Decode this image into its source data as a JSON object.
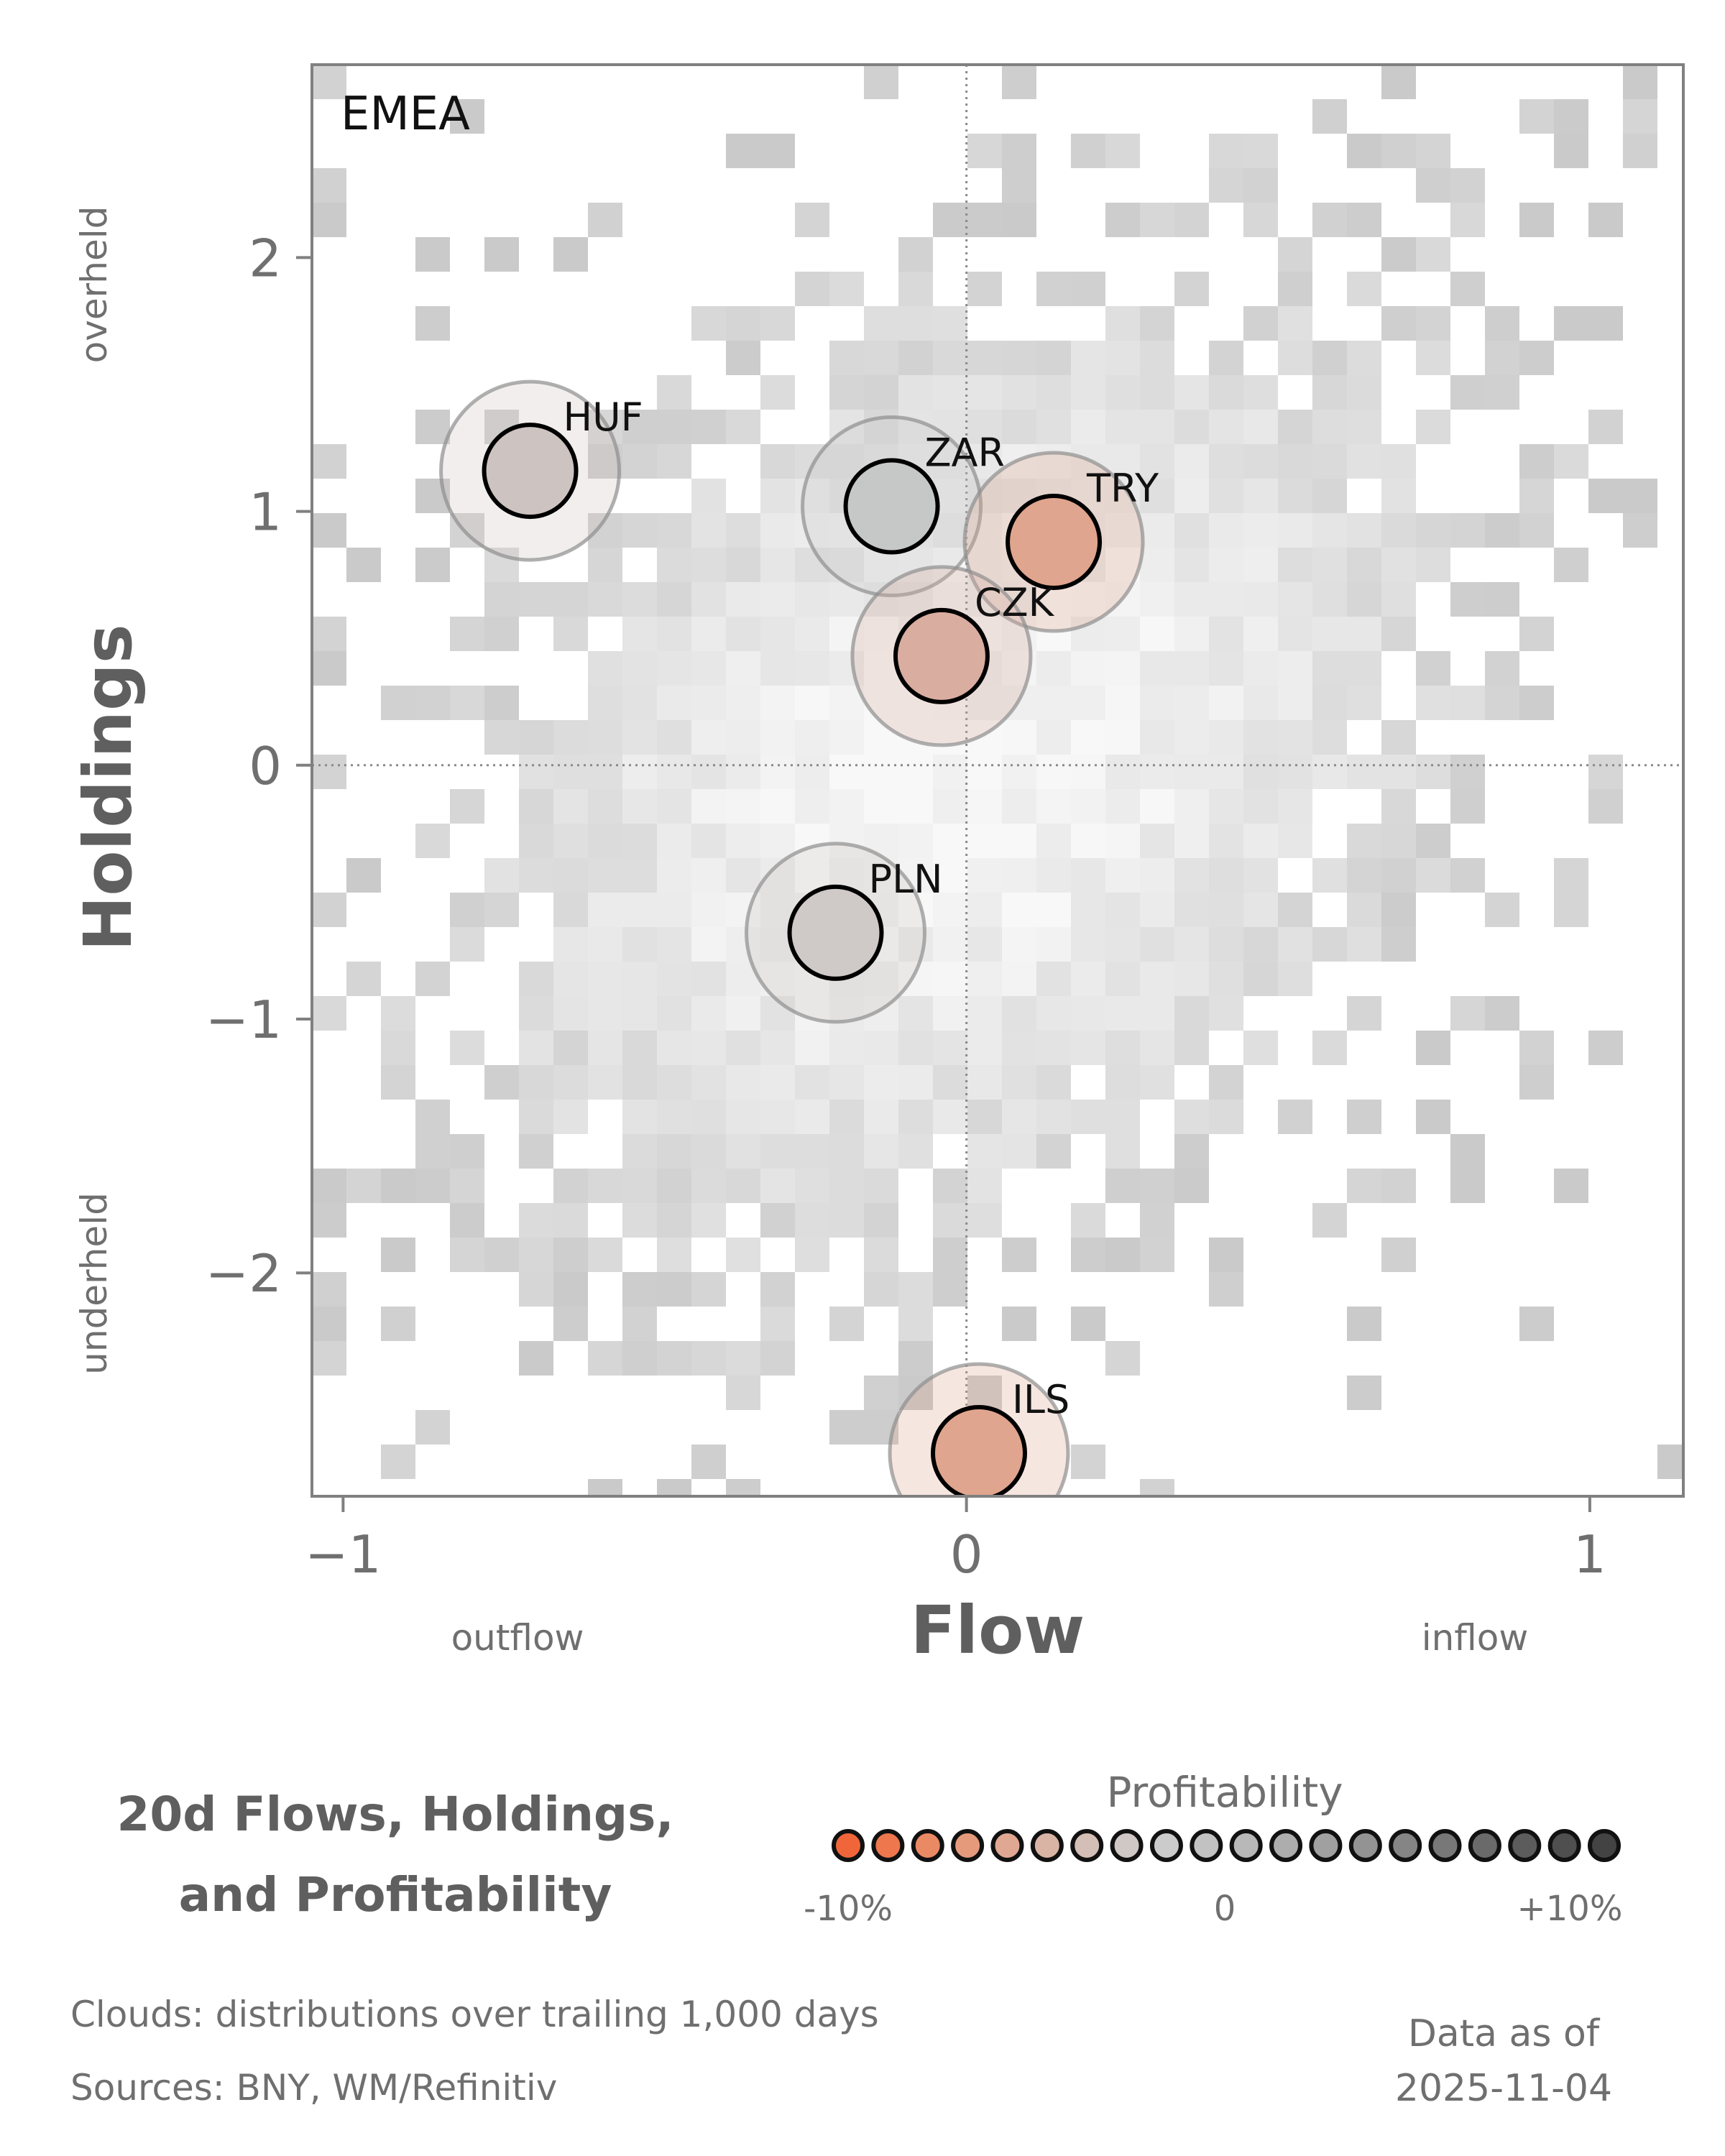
{
  "chart_data": {
    "type": "scatter",
    "panel_label": "EMEA",
    "xlabel": "Flow",
    "ylabel": "Holdings",
    "x_side_labels": {
      "left": "outflow",
      "right": "inflow"
    },
    "y_side_labels": {
      "top": "overheld",
      "bottom": "underheld"
    },
    "xlim": [
      -1.05,
      1.15
    ],
    "ylim": [
      -2.88,
      2.76
    ],
    "xticks": [
      -1,
      0,
      1
    ],
    "xtick_labels": [
      "−1",
      "0",
      "1"
    ],
    "yticks": [
      -2,
      -1,
      0,
      1,
      2
    ],
    "ytick_labels": [
      "−2",
      "−1",
      "0",
      "1",
      "2"
    ],
    "reference_lines": {
      "x": 0,
      "y": 0,
      "style": "dotted"
    },
    "grid": false,
    "background": "2D histogram cloud of trailing distributions (grey)",
    "points": [
      {
        "label": "HUF",
        "x": -0.7,
        "y": 1.16,
        "profitability": 0.0,
        "color": "#cdc3c0"
      },
      {
        "label": "ZAR",
        "x": -0.12,
        "y": 1.02,
        "profitability": 2.5,
        "color": "#c6c8c7"
      },
      {
        "label": "TRY",
        "x": 0.14,
        "y": 0.88,
        "profitability": -6.0,
        "color": "#e0a58e"
      },
      {
        "label": "CZK",
        "x": -0.04,
        "y": 0.43,
        "profitability": -4.0,
        "color": "#d9ada0"
      },
      {
        "label": "PLN",
        "x": -0.21,
        "y": -0.66,
        "profitability": 0.5,
        "color": "#cfc9c7"
      },
      {
        "label": "ILS",
        "x": 0.02,
        "y": -2.71,
        "profitability": -6.0,
        "color": "#e0a58e"
      }
    ],
    "colorbar": {
      "title": "Profitability",
      "tick_labels": [
        "-10%",
        "0",
        "+10%"
      ],
      "range": [
        -10,
        10
      ],
      "colors": [
        "#f0663a",
        "#ee774d",
        "#ea8a65",
        "#e69a7c",
        "#e0a892",
        "#d9b4a5",
        "#d3bfb6",
        "#cfc8c4",
        "#cbcbcb",
        "#c2c2c2",
        "#b8b8b8",
        "#adadad",
        "#a0a0a0",
        "#939393",
        "#858585",
        "#787878",
        "#6a6a6a",
        "#5c5c5c",
        "#4f4f4f",
        "#434343"
      ]
    }
  },
  "footer": {
    "title_lines": [
      "20d Flows, Holdings,",
      "and Profitability"
    ],
    "notes": [
      "Clouds:  distributions over trailing 1,000 days",
      "Sources:  BNY, WM/Refinitiv"
    ],
    "as_of_lines": [
      "Data as of",
      "2025-11-04"
    ]
  }
}
